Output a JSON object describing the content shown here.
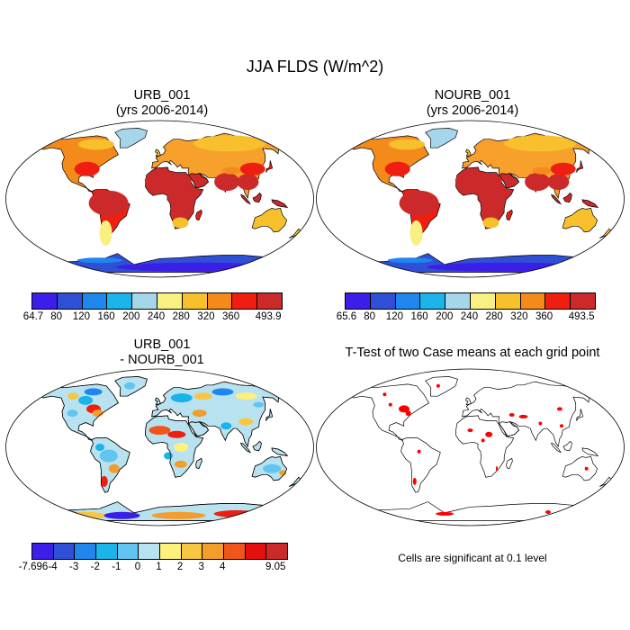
{
  "title": "JJA FLDS (W/m^2)",
  "panels": {
    "urb": {
      "line1": "URB_001",
      "line2": "(yrs 2006-2014)"
    },
    "nourb": {
      "line1": "NOURB_001",
      "line2": "(yrs 2006-2014)"
    },
    "diff": {
      "line1": "URB_001",
      "line2": "- NOURB_001"
    },
    "ttest": {
      "line1": "T-Test of two Case means at each grid point"
    }
  },
  "colorbars": {
    "urb": {
      "colors": [
        "#3b1ee8",
        "#2f4fd6",
        "#1f86ee",
        "#1ab4ea",
        "#a6d6ea",
        "#f8f080",
        "#f7c02c",
        "#f48a1a",
        "#ee1f10",
        "#cc2a2a"
      ],
      "labels": [
        "64.7",
        "80",
        "120",
        "160",
        "200",
        "240",
        "280",
        "320",
        "360",
        "493.9"
      ]
    },
    "nourb": {
      "colors": [
        "#3b1ee8",
        "#2f4fd6",
        "#1f86ee",
        "#1ab4ea",
        "#a6d6ea",
        "#f8f080",
        "#f7c02c",
        "#f48a1a",
        "#ee1f10",
        "#cc2a2a"
      ],
      "labels": [
        "65.6",
        "80",
        "120",
        "160",
        "200",
        "240",
        "280",
        "320",
        "360",
        "493.5"
      ]
    },
    "diff": {
      "colors": [
        "#3b1ee8",
        "#2f4fd6",
        "#1f86ee",
        "#1ab4ea",
        "#62c4f0",
        "#b8e2f0",
        "#fcf17a",
        "#f8c640",
        "#f49d2a",
        "#f0561a",
        "#e60f0f",
        "#cc2a2a"
      ],
      "labels": [
        "-7.696",
        "-4",
        "-3",
        "-2",
        "-1",
        "0",
        "1",
        "2",
        "3",
        "4",
        "9.05"
      ]
    }
  },
  "significance_note": "Cells are significant at 0.1 level",
  "colors": {
    "sig_cell": "#ff0000",
    "coast": "#000000"
  }
}
